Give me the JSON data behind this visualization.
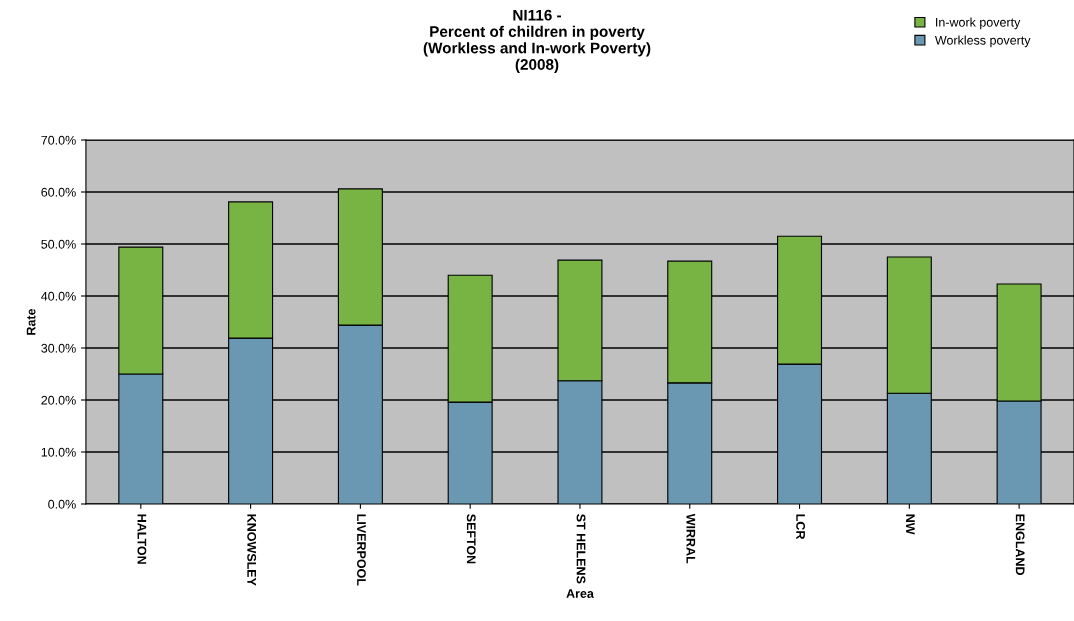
{
  "chart_data": {
    "type": "bar",
    "title": "NI116 -\nPercent of children in poverty\n(Workless and In-work Poverty)\n(2008)",
    "xlabel": "Area",
    "ylabel": "Rate",
    "categories": [
      "HALTON",
      "KNOWSLEY",
      "LIVERPOOL",
      "SEFTON",
      "ST HELENS",
      "WIRRAL",
      "LCR",
      "NW",
      "ENGLAND"
    ],
    "stacked": true,
    "series": [
      {
        "name": "Workless poverty",
        "color": "#6a98b3",
        "values": [
          25.0,
          31.9,
          34.4,
          19.6,
          23.7,
          23.3,
          26.9,
          21.3,
          19.8
        ]
      },
      {
        "name": "In-work poverty",
        "color": "#78b444",
        "values": [
          24.4,
          26.2,
          26.2,
          24.4,
          23.2,
          23.4,
          24.6,
          26.2,
          22.5
        ]
      }
    ],
    "ylim": [
      0,
      70
    ],
    "yticks": [
      {
        "value": 0,
        "label": "0.0%"
      },
      {
        "value": 10,
        "label": "10.0%"
      },
      {
        "value": 20,
        "label": "20.0%"
      },
      {
        "value": 30,
        "label": "30.0%"
      },
      {
        "value": 40,
        "label": "40.0%"
      },
      {
        "value": 50,
        "label": "50.0%"
      },
      {
        "value": 60,
        "label": "60.0%"
      },
      {
        "value": 70,
        "label": "70.0%"
      }
    ],
    "grid": "y",
    "legend": "top right"
  }
}
